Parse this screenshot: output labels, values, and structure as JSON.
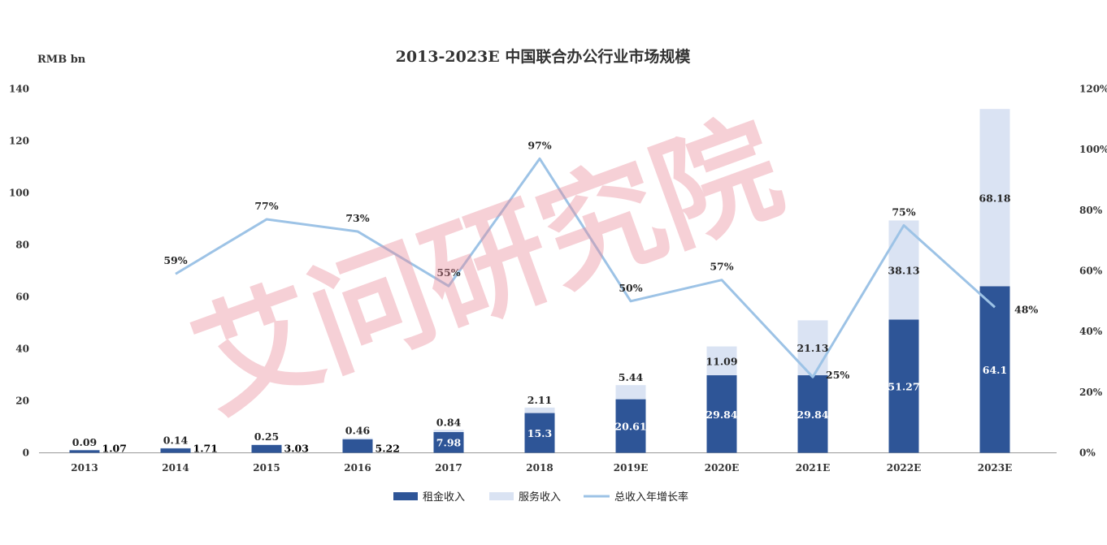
{
  "chart_data": {
    "type": "bar",
    "stacked": true,
    "title": "2013-2023E 中国联合办公行业市场规模",
    "ylabel": "RMB bn",
    "ylim": [
      0,
      140
    ],
    "y_ticks": [
      "0",
      "20",
      "40",
      "60",
      "80",
      "100",
      "120",
      "140"
    ],
    "y2lim": [
      0,
      1.2
    ],
    "y2_ticks": [
      "0%",
      "20%",
      "40%",
      "60%",
      "80%",
      "100%",
      "120%"
    ],
    "categories": [
      "2013",
      "2014",
      "2015",
      "2016",
      "2017",
      "2018",
      "2019E",
      "2020E",
      "2021E",
      "2022E",
      "2023E"
    ],
    "series": [
      {
        "name": "租金收入",
        "kind": "bar",
        "color": "#2e5597",
        "values": [
          1.07,
          1.71,
          3.03,
          5.22,
          7.98,
          15.3,
          20.61,
          29.84,
          29.84,
          51.27,
          64.1
        ],
        "labels": [
          "1.07",
          "1.71",
          "3.03",
          "5.22",
          "7.98",
          "15.3",
          "20.61",
          "29.84",
          "29.84",
          "51.27",
          "64.1"
        ]
      },
      {
        "name": "服务收入",
        "kind": "bar",
        "color": "#dae3f3",
        "values": [
          0.09,
          0.14,
          0.25,
          0.46,
          0.84,
          2.11,
          5.44,
          11.09,
          21.13,
          38.13,
          68.18
        ],
        "labels": [
          "0.09",
          "0.14",
          "0.25",
          "0.46",
          "0.84",
          "2.11",
          "5.44",
          "11.09",
          "21.13",
          "38.13",
          "68.18"
        ]
      },
      {
        "name": "总收入年增长率",
        "kind": "line",
        "axis": "right",
        "color": "#9dc3e6",
        "values": [
          null,
          0.59,
          0.77,
          0.73,
          0.55,
          0.97,
          0.5,
          0.57,
          0.25,
          0.75,
          0.48
        ],
        "labels": [
          "",
          "59%",
          "77%",
          "73%",
          "55%",
          "97%",
          "50%",
          "57%",
          "25%",
          "75%",
          "48%"
        ]
      }
    ],
    "grid": false,
    "legend": "bottom"
  },
  "watermark": "艾问研究院"
}
